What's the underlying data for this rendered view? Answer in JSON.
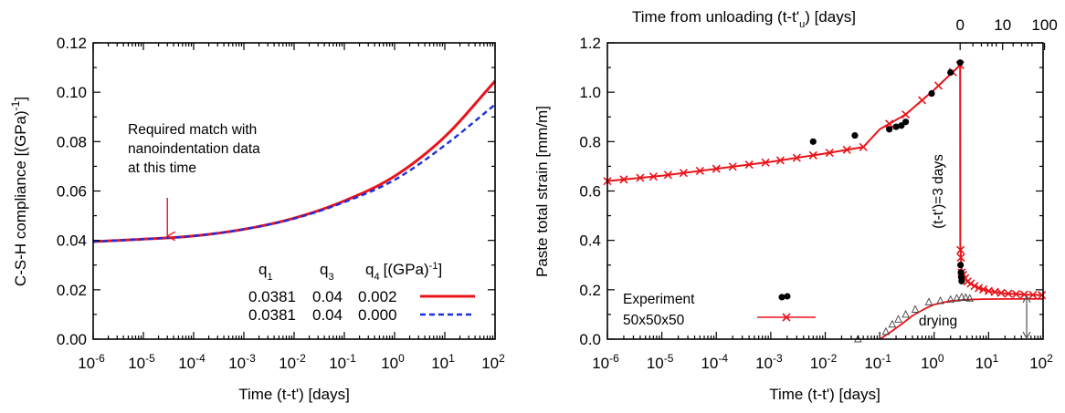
{
  "chart_data": [
    {
      "type": "line",
      "xlabel": "Time (t-t') [days]",
      "ylabel": "C-S-H compliance [(GPa)-1]",
      "xscale": "log",
      "xlim": [
        1e-06,
        100
      ],
      "ylim": [
        0.0,
        0.12
      ],
      "x_tick_labels": [
        {
          "base": "10",
          "exp": "-6"
        },
        {
          "base": "10",
          "exp": "-5"
        },
        {
          "base": "10",
          "exp": "-4"
        },
        {
          "base": "10",
          "exp": "-3"
        },
        {
          "base": "10",
          "exp": "-2"
        },
        {
          "base": "10",
          "exp": "-1"
        },
        {
          "base": "10",
          "exp": "0"
        },
        {
          "base": "10",
          "exp": "1"
        },
        {
          "base": "10",
          "exp": "2"
        }
      ],
      "y_ticks": [
        "0.00",
        "0.02",
        "0.04",
        "0.06",
        "0.08",
        "0.10",
        "0.12"
      ],
      "annotation": {
        "lines": [
          "Required match with",
          "nanoindentation data",
          "at this time"
        ],
        "arrow_x": 3e-05
      },
      "legend_header": {
        "q1": {
          "base": "q",
          "sub": "1"
        },
        "q3": {
          "base": "q",
          "sub": "3"
        },
        "q4": {
          "base": "q",
          "sub": "4",
          "unit": "[(GPa)",
          "unit_exp": "-1",
          "unit_close": "]"
        }
      },
      "legend_rows": [
        {
          "q1": "0.0381",
          "q3": "0.04",
          "q4": "0.002",
          "color": "#e8141b",
          "dash": "none"
        },
        {
          "q1": "0.0381",
          "q3": "0.04",
          "q4": "0.000",
          "color": "#1b2fe0",
          "dash": "6,4"
        }
      ],
      "series": [
        {
          "color": "#e8141b",
          "x": [
            1e-06,
            1e-05,
            0.0001,
            0.001,
            0.01,
            0.1,
            1,
            10,
            100
          ],
          "y": [
            0.0395,
            0.0405,
            0.0418,
            0.0445,
            0.049,
            0.056,
            0.066,
            0.082,
            0.1045
          ]
        },
        {
          "color": "#1b2fe0",
          "x": [
            1e-06,
            1e-05,
            0.0001,
            0.001,
            0.01,
            0.1,
            1,
            10,
            100
          ],
          "y": [
            0.0395,
            0.0405,
            0.0418,
            0.0445,
            0.0488,
            0.0555,
            0.0645,
            0.0785,
            0.095
          ]
        }
      ]
    },
    {
      "type": "line",
      "xlabel": "Time (t-t') [days]",
      "ylabel": "Paste total strain [mm/m]",
      "top_xlabel": "Time from unloading (t-t'u) [days]",
      "top_xlabel_parts": {
        "pre": "Time from unloading (t-t'",
        "sub": "u",
        "post": ") [days]"
      },
      "top_ticks": [
        "0",
        "10",
        "100"
      ],
      "xscale": "log",
      "xlim": [
        1e-06,
        100
      ],
      "ylim": [
        0.0,
        1.2
      ],
      "x_tick_labels": [
        {
          "base": "10",
          "exp": "-6"
        },
        {
          "base": "10",
          "exp": "-5"
        },
        {
          "base": "10",
          "exp": "-4"
        },
        {
          "base": "10",
          "exp": "-3"
        },
        {
          "base": "10",
          "exp": "-2"
        },
        {
          "base": "10",
          "exp": "-1"
        },
        {
          "base": "10",
          "exp": "0"
        },
        {
          "base": "10",
          "exp": "1"
        },
        {
          "base": "10",
          "exp": "2"
        }
      ],
      "y_ticks": [
        "0.0",
        "0.2",
        "0.4",
        "0.6",
        "0.8",
        "1.0",
        "1.2"
      ],
      "vertical_label": "(t-t')=3 days",
      "drying_label": "drying",
      "legend": {
        "label1": "Experiment",
        "label2": "50x50x50"
      },
      "model_color": "#e8141b",
      "model": {
        "x": [
          1e-06,
          1e-05,
          0.0001,
          0.001,
          0.01,
          0.05,
          0.1,
          0.3,
          1,
          3,
          3.02,
          3.2,
          4,
          6,
          10,
          20,
          50,
          100
        ],
        "y": [
          0.64,
          0.662,
          0.69,
          0.718,
          0.752,
          0.778,
          0.85,
          0.91,
          1.01,
          1.11,
          0.38,
          0.27,
          0.235,
          0.21,
          0.195,
          0.185,
          0.18,
          0.178
        ]
      },
      "model_markers_x": [
        1e-06,
        2e-06,
        4e-06,
        7e-06,
        1.3e-05,
        2.5e-05,
        5e-05,
        0.0001,
        0.0002,
        0.0004,
        0.0008,
        0.0015,
        0.003,
        0.006,
        0.012,
        0.025,
        0.05,
        0.15,
        0.3,
        0.6,
        1.2,
        2.2,
        3,
        3.05,
        3.1,
        3.2,
        3.4,
        3.7,
        4.1,
        4.7,
        5.5,
        6.6,
        8,
        10,
        13,
        17,
        23,
        32,
        45,
        65,
        95
      ],
      "experiment": {
        "x": [
          0.0016,
          0.006,
          0.035,
          0.15,
          0.2,
          0.25,
          0.3,
          0.9,
          2.0,
          3.0,
          3.05,
          3.1,
          3.15,
          3.2
        ],
        "y": [
          0.17,
          0.8,
          0.825,
          0.85,
          0.86,
          0.865,
          0.88,
          0.995,
          1.08,
          1.12,
          0.3,
          0.27,
          0.25,
          0.235
        ]
      },
      "drying_model": {
        "x": [
          0.1,
          0.15,
          0.25,
          0.4,
          0.7,
          1,
          2,
          4,
          8,
          20,
          100
        ],
        "y": [
          0.0,
          0.025,
          0.06,
          0.095,
          0.125,
          0.14,
          0.155,
          0.16,
          0.162,
          0.163,
          0.163
        ]
      },
      "drying_data": {
        "x": [
          0.04,
          0.13,
          0.17,
          0.22,
          0.3,
          0.45,
          0.8,
          1.3,
          2,
          2.6,
          3.2,
          3.8,
          4.5
        ],
        "y": [
          0.0,
          0.03,
          0.06,
          0.08,
          0.1,
          0.12,
          0.15,
          0.155,
          0.16,
          0.165,
          0.17,
          0.168,
          0.165
        ]
      }
    }
  ]
}
